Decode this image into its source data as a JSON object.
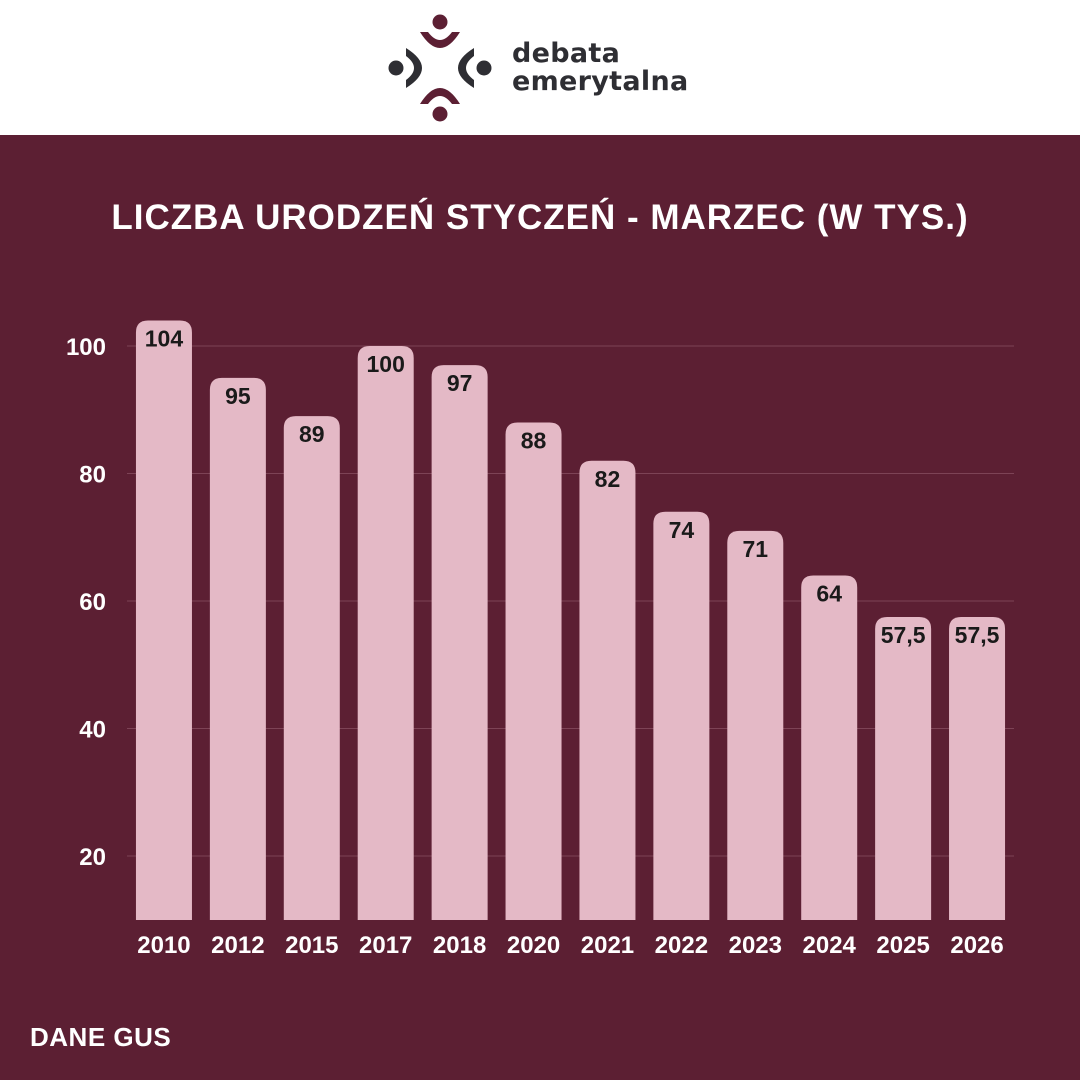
{
  "brand": {
    "line1": "debata",
    "line2": "emerytalna",
    "colors": {
      "primary": "#5c1f33",
      "dark": "#2e2e33",
      "bar": "#e4b9c6"
    }
  },
  "source_label": "DANE GUS",
  "chart_data": {
    "type": "bar",
    "title": "LICZBA URODZEŃ STYCZEŃ - MARZEC (W TYS.)",
    "xlabel": "",
    "ylabel": "",
    "categories": [
      "2010",
      "2012",
      "2015",
      "2017",
      "2018",
      "2020",
      "2021",
      "2022",
      "2023",
      "2024",
      "2025",
      "2026"
    ],
    "values": [
      104,
      95,
      89,
      100,
      97,
      88,
      82,
      74,
      71,
      64,
      57.5,
      57.5
    ],
    "value_labels": [
      "104",
      "95",
      "89",
      "100",
      "97",
      "88",
      "82",
      "74",
      "71",
      "64",
      "57,5",
      "57,5"
    ],
    "y_ticks": [
      20,
      40,
      60,
      80,
      100
    ],
    "ylim": [
      10,
      104
    ],
    "grid": true
  }
}
